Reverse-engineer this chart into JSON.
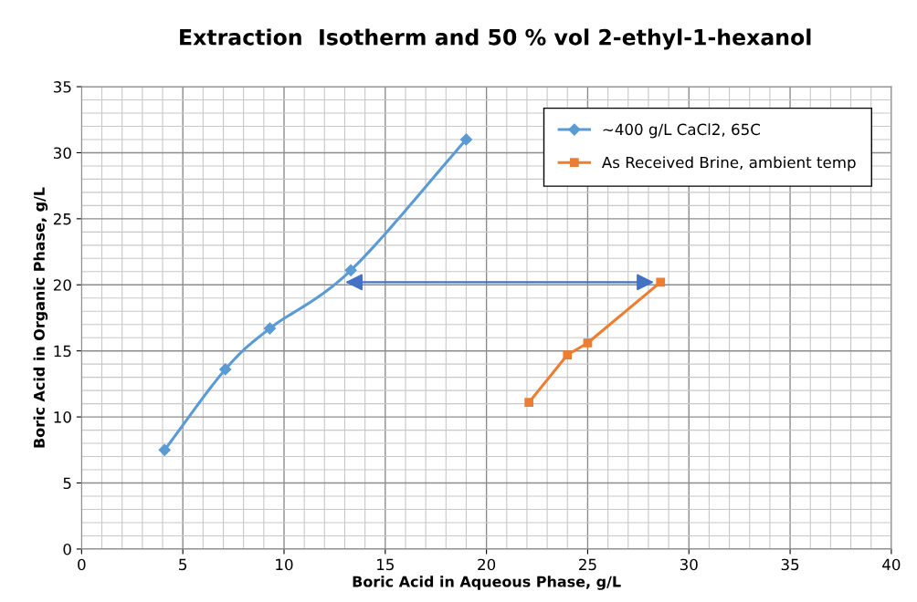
{
  "chart_data": {
    "type": "line",
    "title": "Extraction  Isotherm and 50 % vol 2-ethyl-1-hexanol",
    "xlabel": "Boric Acid in Aqueous Phase, g/L",
    "ylabel": "Boric Acid in Organic Phase, g/L",
    "series": [
      {
        "name": "~400 g/L CaCl2, 65C",
        "color": "#5b9bd5",
        "marker": "diamond",
        "x": [
          4.1,
          7.1,
          9.3,
          13.3,
          19.0
        ],
        "values": [
          7.5,
          13.6,
          16.7,
          21.1,
          31.0
        ]
      },
      {
        "name": "As Received Brine, ambient temp",
        "color": "#ed7d31",
        "marker": "square",
        "x": [
          22.1,
          24.0,
          25.0,
          28.6
        ],
        "values": [
          11.1,
          14.7,
          15.6,
          20.2
        ]
      }
    ],
    "xlim": [
      0,
      40
    ],
    "xticks": [
      0,
      5,
      10,
      15,
      20,
      25,
      30,
      35,
      40
    ],
    "ylim": [
      0,
      35
    ],
    "yticks": [
      0,
      5,
      10,
      15,
      20,
      25,
      30,
      35
    ],
    "grid": true,
    "legend": "top right",
    "line_style": "solid"
  }
}
